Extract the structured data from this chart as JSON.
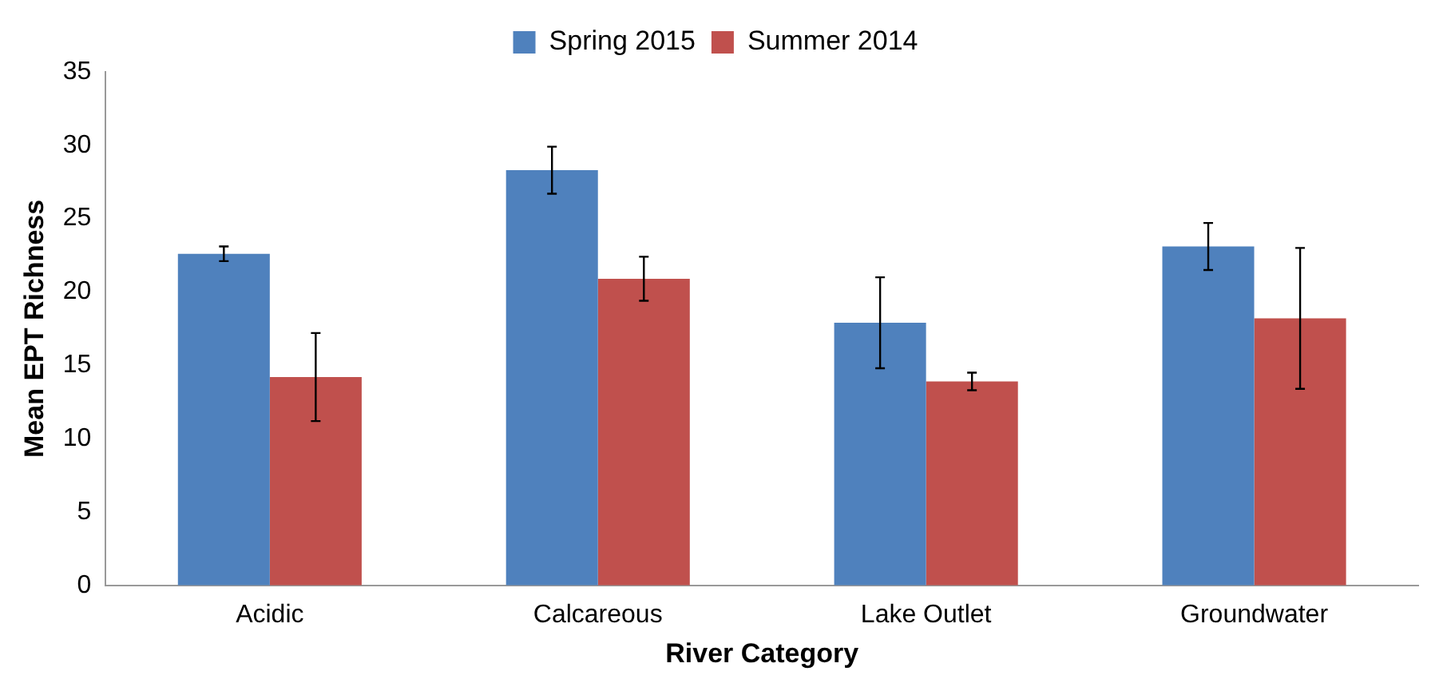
{
  "chart_data": {
    "type": "bar",
    "xlabel": "River Category",
    "ylabel": "Mean EPT Richness",
    "categories": [
      "Acidic",
      "Calcareous",
      "Lake Outlet",
      "Groundwater"
    ],
    "series": [
      {
        "name": "Spring 2015",
        "color": "#4f81bd",
        "values": [
          22.6,
          28.3,
          17.9,
          23.1
        ],
        "errors": [
          0.5,
          1.6,
          3.1,
          1.6
        ]
      },
      {
        "name": "Summer 2014",
        "color": "#c0504d",
        "values": [
          14.2,
          20.9,
          13.9,
          18.2
        ],
        "errors": [
          3,
          1.5,
          0.6,
          4.8
        ]
      }
    ],
    "ylim": [
      0,
      35
    ],
    "yticks": [
      0,
      5,
      10,
      15,
      20,
      25,
      30,
      35
    ],
    "grid": false,
    "legend": "top"
  }
}
